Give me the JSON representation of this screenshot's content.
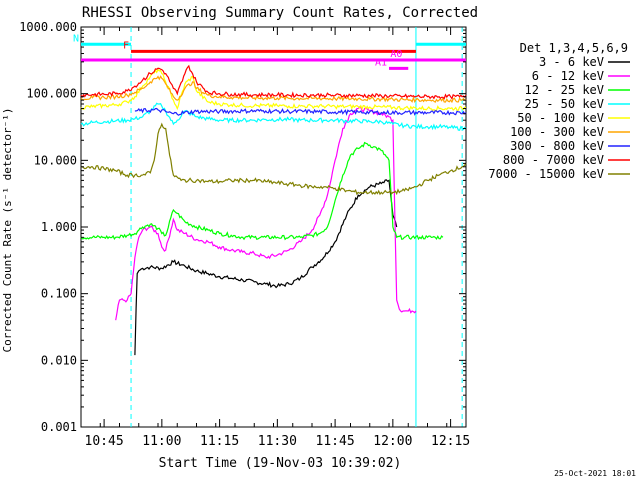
{
  "chart_data": {
    "type": "line",
    "title": "RHESSI Observing Summary Count Rates, Corrected",
    "xlabel": "Start Time (19-Nov-03 10:39:02)",
    "ylabel": "Corrected Count Rate (s⁻¹ detector⁻¹)",
    "yscale": "log",
    "ylim": [
      0.001,
      1000
    ],
    "xlim_minutes": [
      0,
      100
    ],
    "x_ticks": [
      {
        "t": 6,
        "label": "10:45"
      },
      {
        "t": 21,
        "label": "11:00"
      },
      {
        "t": 36,
        "label": "11:15"
      },
      {
        "t": 51,
        "label": "11:30"
      },
      {
        "t": 66,
        "label": "11:45"
      },
      {
        "t": 81,
        "label": "12:00"
      },
      {
        "t": 96,
        "label": "12:15"
      }
    ],
    "y_ticks": [
      {
        "v": 0.001,
        "label": "0.001"
      },
      {
        "v": 0.01,
        "label": "0.010"
      },
      {
        "v": 0.1,
        "label": "0.100"
      },
      {
        "v": 1,
        "label": "1.000"
      },
      {
        "v": 10,
        "label": "10.000"
      },
      {
        "v": 100,
        "label": "100.000"
      },
      {
        "v": 1000,
        "label": "1000.000"
      }
    ],
    "legend_title": "Det 1,3,4,5,6,9",
    "series": [
      {
        "name": "3 - 6 keV",
        "color": "#000000",
        "t": [
          14,
          14.3,
          14.6,
          15,
          16,
          18,
          21,
          24,
          27,
          30,
          33,
          36,
          39,
          42,
          45,
          48,
          51,
          54,
          57,
          60,
          63,
          66,
          69,
          72,
          75,
          78,
          80,
          81,
          82
        ],
        "v": [
          0.012,
          0.06,
          0.2,
          0.22,
          0.24,
          0.25,
          0.24,
          0.3,
          0.26,
          0.22,
          0.2,
          0.18,
          0.17,
          0.16,
          0.15,
          0.14,
          0.13,
          0.14,
          0.17,
          0.25,
          0.35,
          0.6,
          1.5,
          3,
          4,
          4.5,
          5,
          1.5,
          1.0
        ]
      },
      {
        "name": "6 - 12 keV",
        "color": "#ff00ff",
        "t": [
          9,
          10,
          11,
          12,
          13,
          14,
          15,
          16,
          18,
          20,
          21,
          22,
          24,
          25,
          27,
          30,
          33,
          36,
          39,
          42,
          45,
          48,
          51,
          54,
          57,
          60,
          62,
          64,
          66,
          68,
          70,
          72,
          75,
          78,
          80,
          81,
          82,
          83,
          84,
          85,
          86,
          87
        ],
        "v": [
          0.04,
          0.08,
          0.08,
          0.08,
          0.1,
          0.35,
          0.7,
          0.9,
          1.0,
          0.8,
          0.5,
          0.45,
          1.3,
          0.9,
          0.8,
          0.65,
          0.6,
          0.5,
          0.45,
          0.42,
          0.4,
          0.35,
          0.38,
          0.45,
          0.6,
          0.9,
          1.5,
          3,
          10,
          30,
          50,
          60,
          55,
          50,
          45,
          40,
          0.08,
          0.055,
          0.055,
          0.055,
          0.055,
          0.055
        ]
      },
      {
        "name": "12 - 25 keV",
        "color": "#00ff00",
        "t": [
          0,
          3,
          6,
          9,
          12,
          14,
          15,
          16,
          18,
          20,
          21,
          22,
          24,
          25,
          27,
          30,
          33,
          36,
          39,
          42,
          45,
          48,
          51,
          54,
          57,
          60,
          62,
          64,
          66,
          68,
          70,
          72,
          74,
          76,
          78,
          80,
          81,
          82,
          84,
          86,
          88,
          90,
          92,
          94
        ],
        "v": [
          0.7,
          0.7,
          0.7,
          0.7,
          0.75,
          0.8,
          0.9,
          1.0,
          1.1,
          0.95,
          0.8,
          0.75,
          1.8,
          1.6,
          1.2,
          1.0,
          0.9,
          0.8,
          0.75,
          0.7,
          0.7,
          0.7,
          0.7,
          0.7,
          0.7,
          0.75,
          0.8,
          1.0,
          2.5,
          6,
          12,
          15,
          18,
          16,
          14,
          10,
          1.0,
          0.7,
          0.7,
          0.7,
          0.7,
          0.7,
          0.7,
          0.7
        ]
      },
      {
        "name": "25 - 50 keV",
        "color": "#00ffff",
        "t": [
          0,
          3,
          6,
          9,
          12,
          14,
          16,
          18,
          20,
          21,
          22,
          24,
          25,
          27,
          30,
          33,
          36,
          39,
          42,
          45,
          48,
          51,
          54,
          57,
          60,
          63,
          66,
          69,
          72,
          75,
          78,
          81,
          84,
          87,
          90,
          93,
          96,
          99,
          100
        ],
        "v": [
          35,
          37,
          38,
          39,
          40,
          42,
          45,
          55,
          70,
          65,
          55,
          35,
          40,
          55,
          45,
          42,
          40,
          40,
          40,
          40,
          41,
          41,
          41,
          40,
          40,
          40,
          40,
          39,
          39,
          38,
          38,
          35,
          33,
          32,
          32,
          32,
          31,
          30,
          30
        ]
      },
      {
        "name": "50 - 100 keV",
        "color": "#ffff00",
        "t": [
          0,
          3,
          6,
          9,
          12,
          14,
          16,
          18,
          20,
          21,
          22,
          24,
          25,
          27,
          29,
          30,
          33,
          36,
          39,
          42,
          45,
          48,
          51,
          54,
          57,
          60,
          63,
          66,
          69,
          72,
          75,
          78,
          81,
          84,
          87,
          90,
          93,
          96,
          99,
          100
        ],
        "v": [
          62,
          64,
          66,
          68,
          75,
          90,
          130,
          180,
          230,
          200,
          150,
          80,
          60,
          140,
          180,
          110,
          75,
          70,
          68,
          67,
          66,
          66,
          66,
          65,
          65,
          65,
          65,
          64,
          64,
          64,
          63,
          63,
          62,
          61,
          61,
          60,
          60,
          60,
          60,
          62
        ]
      },
      {
        "name": "100 - 300 keV",
        "color": "#ffa500",
        "t": [
          0,
          3,
          6,
          9,
          12,
          14,
          16,
          18,
          20,
          21,
          22,
          24,
          25,
          27,
          29,
          30,
          33,
          36,
          39,
          42,
          45,
          48,
          51,
          54,
          57,
          60,
          63,
          66,
          69,
          72,
          75,
          78,
          81,
          84,
          87,
          90,
          93,
          96,
          99,
          100
        ],
        "v": [
          85,
          87,
          88,
          90,
          95,
          105,
          120,
          150,
          180,
          170,
          140,
          90,
          80,
          120,
          150,
          120,
          95,
          90,
          88,
          87,
          86,
          86,
          86,
          85,
          85,
          85,
          85,
          84,
          84,
          84,
          83,
          83,
          82,
          81,
          81,
          80,
          80,
          80,
          80,
          82
        ]
      },
      {
        "name": "300 - 800 keV",
        "color": "#2222ff",
        "t": [
          14,
          20,
          24,
          30,
          36,
          42,
          48,
          54,
          60,
          66,
          72,
          78,
          84,
          90,
          96,
          100
        ],
        "v": [
          55,
          57,
          50,
          54,
          54,
          55,
          55,
          54,
          54,
          53,
          53,
          52,
          52,
          52,
          52,
          52
        ]
      },
      {
        "name": "800 - 7000 keV",
        "color": "#ff0000",
        "t": [
          0,
          3,
          6,
          9,
          12,
          14,
          16,
          18,
          20,
          21,
          22,
          24,
          25,
          27,
          28,
          30,
          33,
          36,
          39,
          42,
          45,
          48,
          51,
          54,
          57,
          60,
          63,
          66,
          69,
          72,
          75,
          78,
          81,
          84,
          87,
          90,
          93,
          96,
          99,
          100
        ],
        "v": [
          95,
          97,
          98,
          100,
          110,
          130,
          160,
          200,
          240,
          230,
          200,
          120,
          100,
          200,
          260,
          150,
          105,
          100,
          98,
          97,
          96,
          96,
          96,
          95,
          95,
          95,
          95,
          94,
          94,
          94,
          93,
          93,
          92,
          91,
          91,
          90,
          90,
          90,
          90,
          95
        ]
      },
      {
        "name": "7000 - 15000 keV",
        "color": "#808000",
        "t": [
          0,
          3,
          6,
          9,
          12,
          14,
          16,
          18,
          19,
          20,
          21,
          22,
          23,
          24,
          26,
          30,
          33,
          36,
          39,
          42,
          45,
          48,
          51,
          54,
          57,
          60,
          63,
          66,
          69,
          72,
          75,
          78,
          81,
          84,
          87,
          90,
          93,
          96,
          99,
          100
        ],
        "v": [
          8,
          8,
          7.5,
          7,
          6,
          6,
          6,
          6.5,
          10,
          25,
          35,
          30,
          12,
          6,
          5,
          5,
          4.8,
          4.8,
          5,
          5,
          5,
          4.8,
          4.6,
          4.4,
          4.2,
          4,
          4,
          3.8,
          3.5,
          3.3,
          3.3,
          3.3,
          3.3,
          3.5,
          4,
          5,
          6,
          7,
          8,
          9
        ]
      }
    ],
    "annotations": [
      {
        "label": "N",
        "t_start": 0,
        "t_end": 13,
        "value": 550,
        "color": "#00ffff"
      },
      {
        "label": "",
        "t_start": 87,
        "t_end": 100,
        "value": 550,
        "color": "#00ffff"
      },
      {
        "label": "F",
        "t_start": 13,
        "t_end": 87,
        "value": 430,
        "color": "#ff0000"
      },
      {
        "label": "",
        "t_start": 0,
        "t_end": 100,
        "value": 320,
        "color": "#ff00ff"
      },
      {
        "label": "A0",
        "t_start": 84,
        "t_end": 87,
        "value": 320,
        "color": "#ff00ff"
      },
      {
        "label": "A1",
        "t_start": 80,
        "t_end": 85,
        "value": 240,
        "color": "#ff00ff"
      }
    ],
    "vertical_markers": [
      {
        "t": 13,
        "style": "dashed",
        "color": "#00ffff"
      },
      {
        "t": 87,
        "style": "solid",
        "color": "#00ffff"
      },
      {
        "t": 99,
        "style": "dashed",
        "color": "#00ffff"
      }
    ],
    "footer_timestamp": "25-Oct-2021 18:01"
  }
}
